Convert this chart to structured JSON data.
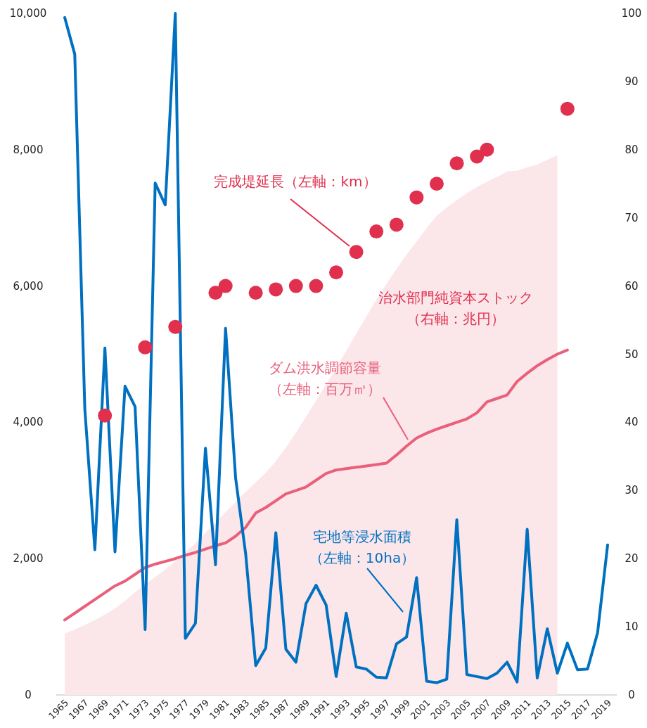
{
  "chart_data": {
    "type": "line",
    "categories": [
      "1965",
      null,
      "1967",
      null,
      "1969",
      null,
      "1971",
      null,
      "1973",
      null,
      "1975",
      null,
      "1977",
      null,
      "1979",
      null,
      "1981",
      null,
      "1983",
      null,
      "1985",
      null,
      "1987",
      null,
      "1989",
      null,
      "1991",
      null,
      "1993",
      null,
      "1995",
      null,
      "1997",
      null,
      "1999",
      null,
      "2001",
      null,
      "2003",
      null,
      "2005",
      null,
      "2007",
      null,
      "2009",
      null,
      "2011",
      null,
      "2013",
      null,
      "2015",
      null,
      "2017",
      null,
      "2019"
    ],
    "ylim": [
      0,
      10000
    ],
    "yticks": [
      0,
      {
        "value": 2000,
        "label": "2,000"
      },
      {
        "value": 4000,
        "label": "4,000"
      },
      {
        "value": 6000,
        "label": "6,000"
      },
      {
        "value": 8000,
        "label": "8,000"
      },
      {
        "value": 10000,
        "label": "10,000"
      }
    ],
    "y2lim": [
      0,
      100
    ],
    "y2ticks": [
      0,
      10,
      20,
      30,
      40,
      50,
      60,
      70,
      80,
      90,
      100
    ],
    "legend": false,
    "series": [
      {
        "name": "治水部門純資本ストック（右軸：兆円）",
        "type": "area",
        "axis": "y2",
        "color": "#fbe6ea",
        "values": [
          9.0,
          9.6,
          10.3,
          11.0,
          11.8,
          12.7,
          13.8,
          15.1,
          16.2,
          17.3,
          18.4,
          19.6,
          20.9,
          22.3,
          23.8,
          25.3,
          26.8,
          28.3,
          29.8,
          31.2,
          32.6,
          34.3,
          36.3,
          38.5,
          40.8,
          43.2,
          45.6,
          48.0,
          50.5,
          53.0,
          55.5,
          58.0,
          60.3,
          62.5,
          64.6,
          66.5,
          68.5,
          70.3,
          71.5,
          72.6,
          73.6,
          74.5,
          75.3,
          76.0,
          76.8,
          76.9,
          77.4,
          77.8,
          78.5,
          79.2,
          null,
          null,
          null,
          null,
          null
        ]
      },
      {
        "name": "ダム洪水調節容量（左軸：百万㎥）",
        "type": "line",
        "color": "#e8607a",
        "values": [
          1100,
          1200,
          1300,
          1400,
          1500,
          1600,
          1670,
          1770,
          1870,
          1920,
          1960,
          2000,
          2050,
          2090,
          2140,
          2190,
          2230,
          2330,
          2460,
          2670,
          2750,
          2850,
          2950,
          3000,
          3050,
          3150,
          3250,
          3300,
          3320,
          3340,
          3360,
          3380,
          3400,
          3520,
          3650,
          3770,
          3840,
          3900,
          3950,
          4000,
          4050,
          4140,
          4300,
          4350,
          4400,
          4600,
          4720,
          4830,
          4920,
          5000,
          5060,
          null,
          null,
          null,
          null
        ]
      },
      {
        "name": "宅地等浸水面積（左軸：10ha）",
        "type": "line",
        "color": "#0070c0",
        "values": [
          9940,
          9400,
          4200,
          2130,
          5090,
          2100,
          4530,
          4230,
          960,
          7510,
          7190,
          10000,
          830,
          1050,
          3620,
          1910,
          5380,
          3180,
          2070,
          430,
          690,
          2380,
          670,
          480,
          1340,
          1610,
          1320,
          270,
          1200,
          410,
          380,
          260,
          250,
          750,
          850,
          1720,
          200,
          180,
          230,
          2570,
          300,
          270,
          240,
          320,
          480,
          190,
          2430,
          250,
          970,
          320,
          760,
          370,
          380,
          910,
          2200
        ]
      },
      {
        "name": "完成堤延長（左軸：km）",
        "type": "scatter",
        "marker": "circle",
        "color": "#e0304e",
        "values": [
          null,
          null,
          null,
          null,
          4100,
          null,
          null,
          null,
          5100,
          null,
          null,
          5400,
          null,
          null,
          null,
          5900,
          6000,
          null,
          null,
          5900,
          null,
          5950,
          null,
          6000,
          null,
          6000,
          null,
          6200,
          null,
          6500,
          null,
          6800,
          null,
          6900,
          null,
          7300,
          null,
          7500,
          null,
          7800,
          null,
          7900,
          8000,
          null,
          null,
          null,
          null,
          null,
          null,
          null,
          8600,
          null,
          null,
          null,
          null
        ]
      }
    ]
  }
}
